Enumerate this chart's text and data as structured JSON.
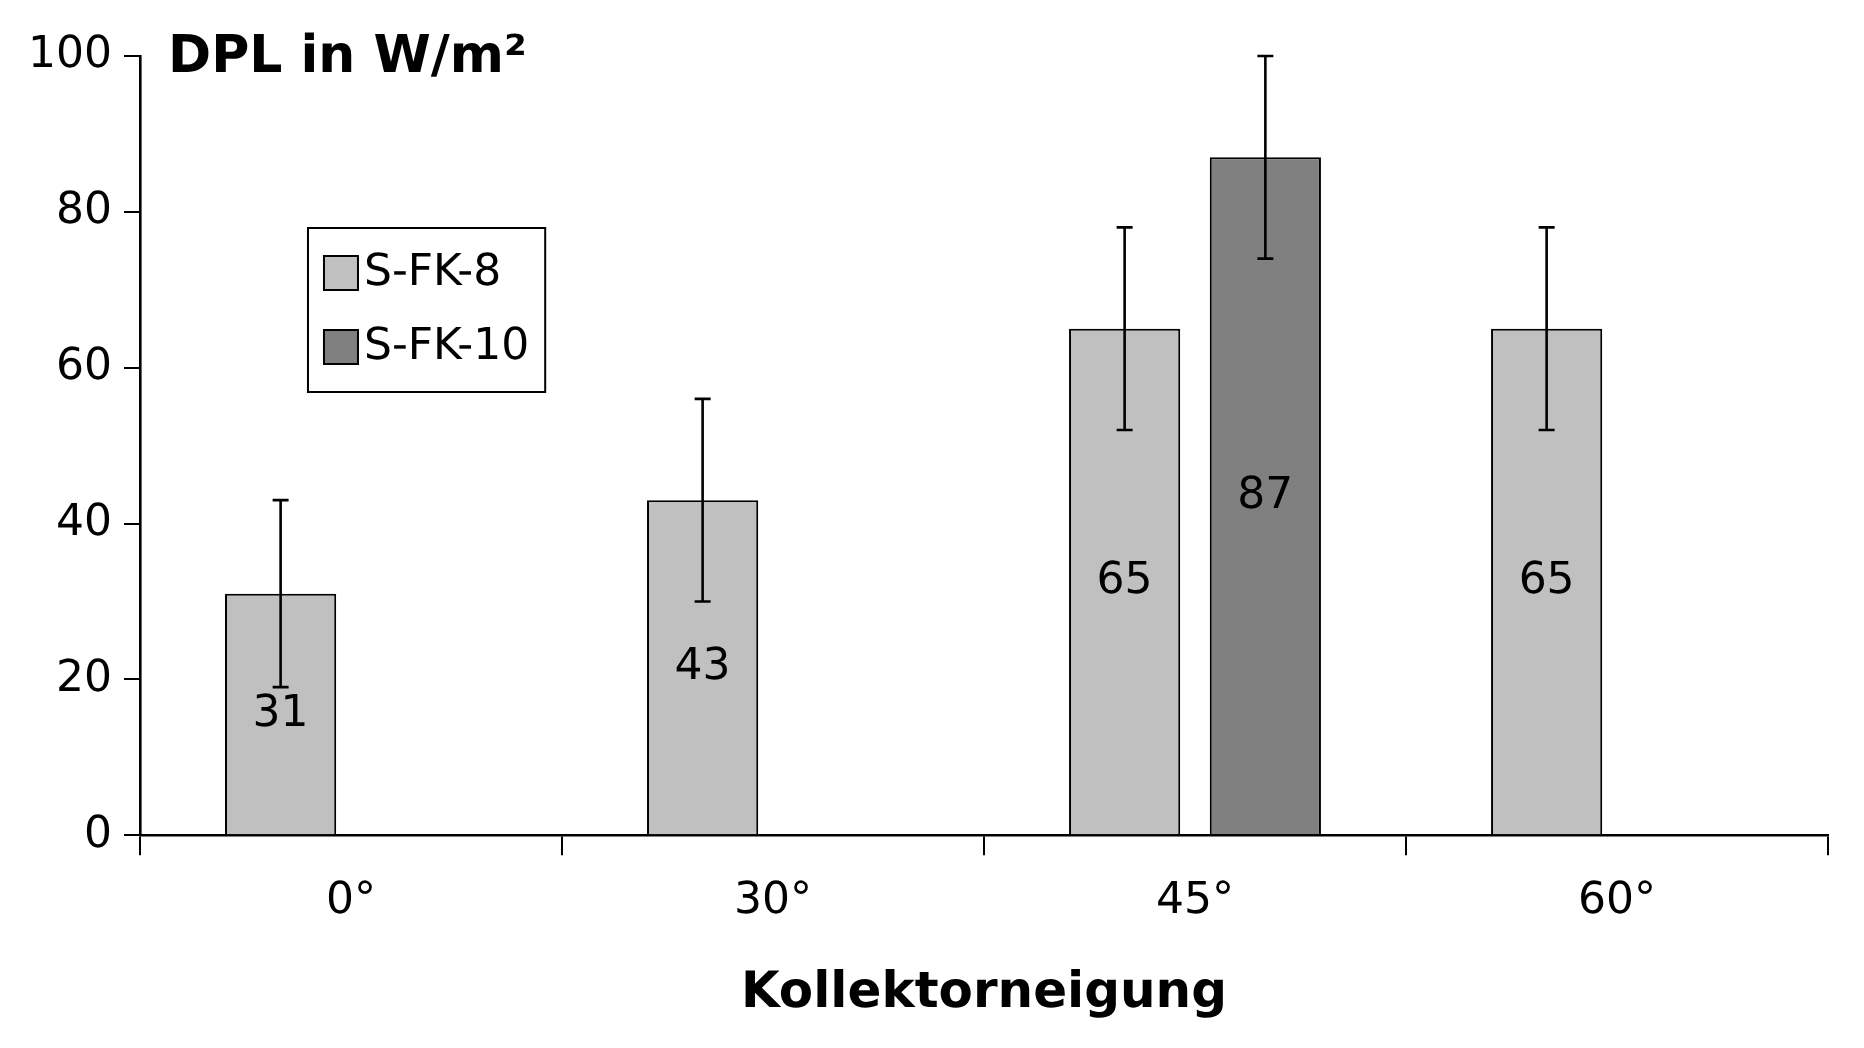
{
  "chart_data": {
    "type": "bar",
    "title": "DPL in W/m²",
    "xlabel": "Kollektorneigung",
    "categories": [
      "0°",
      "30°",
      "45°",
      "60°"
    ],
    "series": [
      {
        "name": "S-FK-8",
        "color": "#c0c0c0",
        "values": [
          31,
          43,
          65,
          65
        ],
        "errors": [
          12,
          13,
          13,
          13
        ]
      },
      {
        "name": "S-FK-10",
        "color": "#808080",
        "values": [
          null,
          null,
          87,
          null
        ],
        "errors": [
          null,
          null,
          13,
          null
        ]
      }
    ],
    "ylim": [
      0,
      100
    ],
    "yticks": [
      0,
      20,
      40,
      60,
      80,
      100
    ],
    "grid": false,
    "legend": "top left",
    "data_labels": true
  }
}
